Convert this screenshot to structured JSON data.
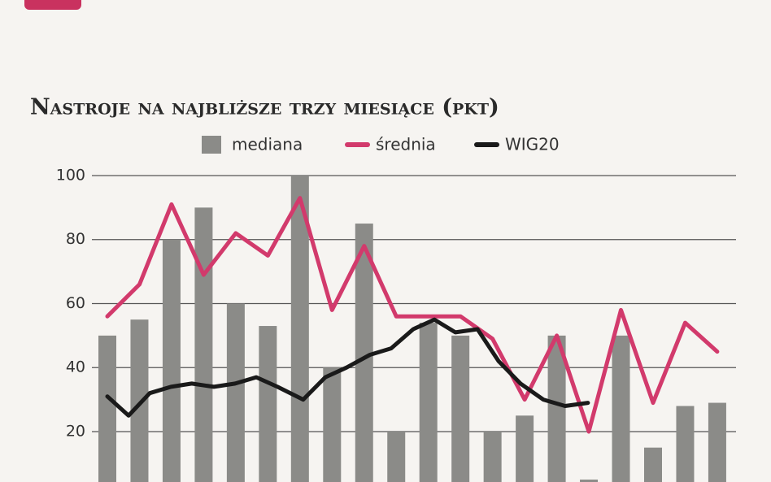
{
  "chart_data": {
    "type": "bar-line",
    "title": "Nastroje na najbliższe trzy miesiące (pkt)",
    "categories": [
      null,
      null,
      null,
      null,
      null,
      null,
      null,
      null,
      null,
      null,
      null,
      null,
      null,
      null,
      null,
      null,
      null,
      null,
      null,
      null
    ],
    "series": [
      {
        "name": "mediana",
        "type": "bar",
        "color": "#8b8b88",
        "values": [
          50,
          55,
          80,
          90,
          60,
          53,
          100,
          40,
          85,
          20,
          54,
          50,
          20,
          25,
          50,
          5,
          50,
          15,
          28,
          29
        ]
      },
      {
        "name": "średnia",
        "type": "line",
        "color": "#d23a6c",
        "values": [
          56,
          66,
          91,
          69,
          82,
          75,
          93,
          58,
          78,
          56,
          56,
          56,
          49,
          30,
          50,
          20,
          58,
          29,
          54,
          45
        ]
      },
      {
        "name": "WIG20",
        "type": "line",
        "color": "#1a1a1a",
        "x": [
          0,
          0.66,
          1.32,
          1.98,
          2.63,
          3.32,
          3.98,
          4.64,
          5.3,
          6.1,
          6.79,
          7.45,
          8.18,
          8.84,
          9.53,
          10.19,
          10.84,
          11.53,
          12.19,
          12.87,
          13.58,
          14.26,
          14.97
        ],
        "values": [
          31,
          25,
          32,
          34,
          35,
          34,
          35,
          37,
          34,
          30,
          37,
          40,
          44,
          46,
          52,
          55,
          51,
          52,
          42,
          35,
          30,
          28,
          29
        ]
      }
    ],
    "ylim": [
      4.25,
      100
    ],
    "yticks": [
      20,
      40,
      60,
      80,
      100
    ],
    "grid": true
  }
}
